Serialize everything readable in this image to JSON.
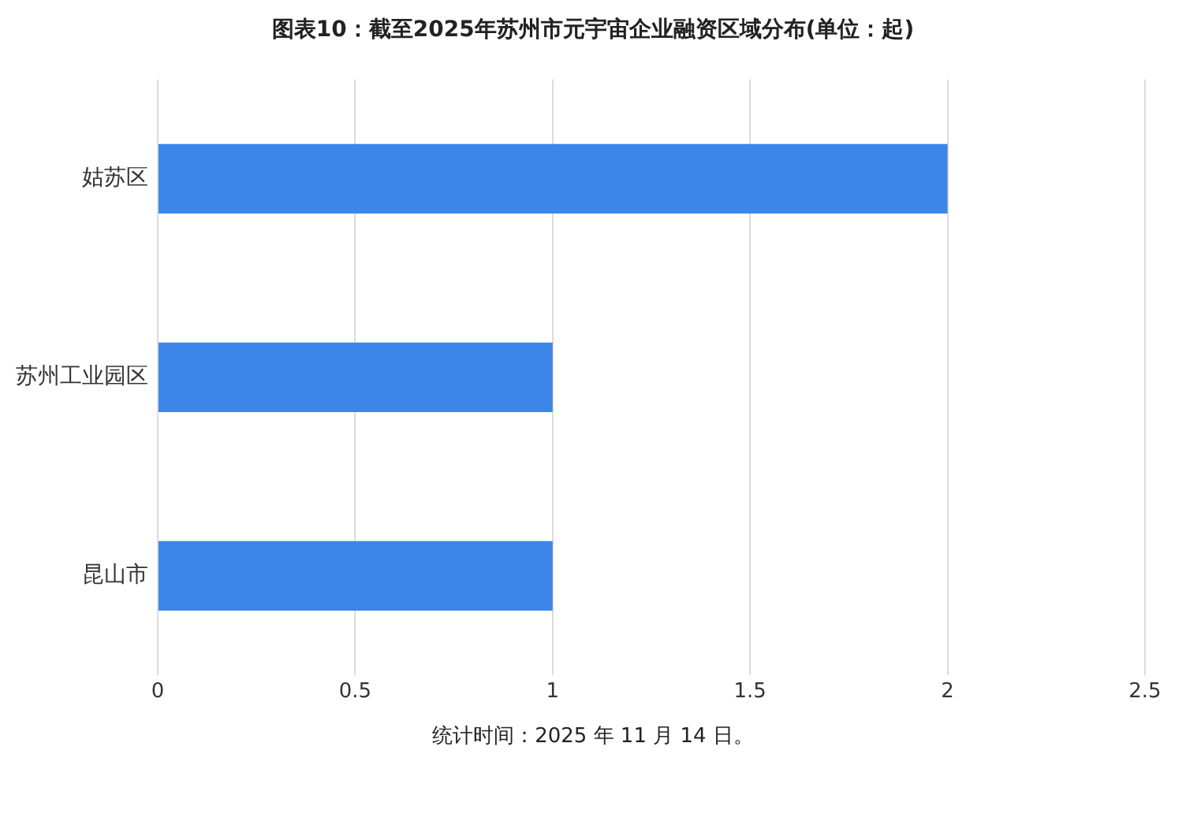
{
  "chart_data": {
    "type": "bar",
    "orientation": "horizontal",
    "title": "图表10：截至2025年苏州市元宇宙企业融资区域分布(单位：起)",
    "categories": [
      "姑苏区",
      "苏州工业园区",
      "昆山市"
    ],
    "values": [
      2,
      1,
      1
    ],
    "color": "#3b86e8",
    "xlim": [
      0,
      2.5
    ],
    "xticks": [
      0,
      0.5,
      1,
      1.5,
      2,
      2.5
    ],
    "grid": "x",
    "legend": false,
    "annotations": [
      "统计时间：2025 年 11 月 14 日。"
    ]
  }
}
